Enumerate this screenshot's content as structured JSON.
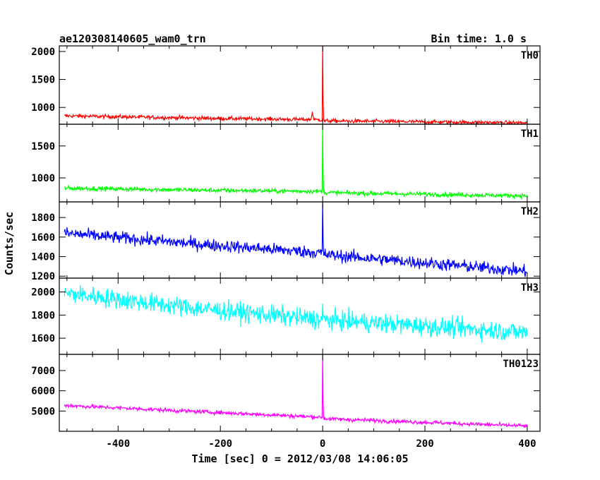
{
  "header": {
    "left_title": "ae120308140605_wam0_trn",
    "right_title": "Bin time: 1.0 s"
  },
  "axes": {
    "xlabel": "Time [sec] 0 = 2012/03/08 14:06:05",
    "ylabel": "Counts/sec"
  },
  "chart_data": [
    {
      "type": "line",
      "name": "TH0",
      "color": "#ff0000",
      "xlim": [
        -515,
        425
      ],
      "ylim": [
        700,
        2100
      ],
      "yticks": [
        1000,
        1500,
        2000
      ],
      "trend": {
        "x": [
          -505,
          -250,
          -5,
          5,
          400
        ],
        "y": [
          850,
          810,
          780,
          760,
          725
        ]
      },
      "noise": 25,
      "peak": {
        "x": 0,
        "y": 2100
      },
      "features": [
        {
          "x": -20,
          "y": 920
        }
      ]
    },
    {
      "type": "line",
      "name": "TH1",
      "color": "#00ff00",
      "xlim": [
        -515,
        425
      ],
      "ylim": [
        625,
        1840
      ],
      "yticks": [
        1000,
        1500
      ],
      "trend": {
        "x": [
          -505,
          -250,
          -5,
          5,
          400
        ],
        "y": [
          840,
          810,
          790,
          770,
          720
        ]
      },
      "noise": 25,
      "peak": {
        "x": 0,
        "y": 1840
      }
    },
    {
      "type": "line",
      "name": "TH2",
      "color": "#0000ff",
      "xlim": [
        -515,
        425
      ],
      "ylim": [
        1180,
        1960
      ],
      "yticks": [
        1200,
        1400,
        1600,
        1800
      ],
      "trend": {
        "x": [
          -505,
          -250,
          -5,
          5,
          400
        ],
        "y": [
          1640,
          1530,
          1440,
          1420,
          1250
        ]
      },
      "noise": 45,
      "peak": {
        "x": 0,
        "y": 1960
      }
    },
    {
      "type": "line",
      "name": "TH3",
      "color": "#00ffff",
      "xlim": [
        -515,
        425
      ],
      "ylim": [
        1460,
        2120
      ],
      "yticks": [
        1600,
        1800,
        2000
      ],
      "trend": {
        "x": [
          -505,
          -250,
          0,
          400
        ],
        "y": [
          1990,
          1860,
          1760,
          1650
        ]
      },
      "noise": 60,
      "peak": {
        "x": 0,
        "y": 1900
      }
    },
    {
      "type": "line",
      "name": "TH0123",
      "color": "#ff00ff",
      "xlim": [
        -515,
        425
      ],
      "ylim": [
        4000,
        7800
      ],
      "yticks": [
        5000,
        6000,
        7000
      ],
      "trend": {
        "x": [
          -505,
          -250,
          -5,
          5,
          400
        ],
        "y": [
          5280,
          4980,
          4700,
          4620,
          4260
        ]
      },
      "noise": 70,
      "peak": {
        "x": 0,
        "y": 7800
      }
    }
  ],
  "xticks": [
    -400,
    -200,
    0,
    200,
    400
  ]
}
